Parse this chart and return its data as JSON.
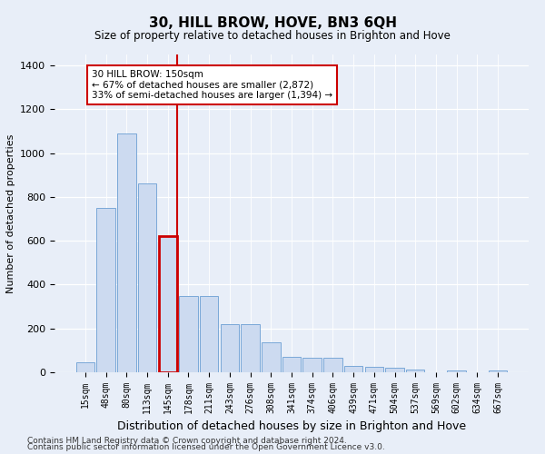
{
  "title": "30, HILL BROW, HOVE, BN3 6QH",
  "subtitle": "Size of property relative to detached houses in Brighton and Hove",
  "xlabel": "Distribution of detached houses by size in Brighton and Hove",
  "ylabel": "Number of detached properties",
  "bar_labels": [
    "15sqm",
    "48sqm",
    "80sqm",
    "113sqm",
    "145sqm",
    "178sqm",
    "211sqm",
    "243sqm",
    "276sqm",
    "308sqm",
    "341sqm",
    "374sqm",
    "406sqm",
    "439sqm",
    "471sqm",
    "504sqm",
    "537sqm",
    "569sqm",
    "602sqm",
    "634sqm",
    "667sqm"
  ],
  "bar_values": [
    45,
    750,
    1090,
    860,
    620,
    350,
    350,
    220,
    220,
    135,
    70,
    65,
    65,
    28,
    25,
    20,
    12,
    0,
    10,
    0,
    10
  ],
  "bar_color": "#ccdaf0",
  "bar_edge_color": "#7aa8d8",
  "highlight_bar_index": 4,
  "highlight_color": "#cc0000",
  "annotation_text": "30 HILL BROW: 150sqm\n← 67% of detached houses are smaller (2,872)\n33% of semi-detached houses are larger (1,394) →",
  "annotation_box_color": "#ffffff",
  "annotation_box_edge": "#cc0000",
  "ylim": [
    0,
    1450
  ],
  "yticks": [
    0,
    200,
    400,
    600,
    800,
    1000,
    1200,
    1400
  ],
  "footer1": "Contains HM Land Registry data © Crown copyright and database right 2024.",
  "footer2": "Contains public sector information licensed under the Open Government Licence v3.0.",
  "bg_color": "#e8eef8",
  "plot_bg_color": "#e8eef8"
}
